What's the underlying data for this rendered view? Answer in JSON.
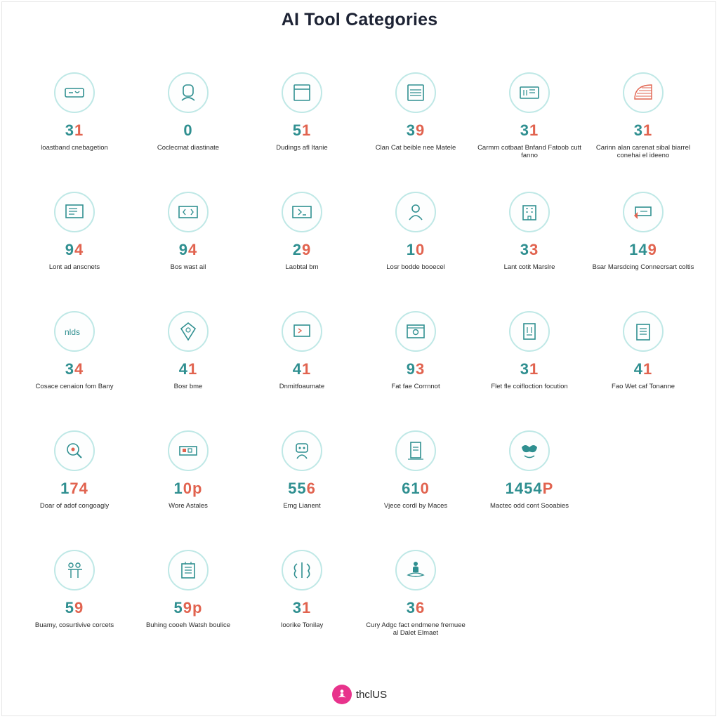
{
  "page": {
    "title": "AI Tool Categories"
  },
  "categories": [
    {
      "icon": "ticket-icon",
      "count_a": "3",
      "count_b": "1",
      "label": "loastband cnebagetion"
    },
    {
      "icon": "robot-head-icon",
      "count_a": "0",
      "count_b": "",
      "label": "Coclecmat diastinate"
    },
    {
      "icon": "document-window-icon",
      "count_a": "5",
      "count_b": "1",
      "label": "Dudings afl Itanie"
    },
    {
      "icon": "browser-window-icon",
      "count_a": "3",
      "count_b": "9",
      "label": "Clan Cat beible nee Matele"
    },
    {
      "icon": "server-icon",
      "count_a": "3",
      "count_b": "1",
      "label": "Carmm cotbaat Bnfand Fatoob cutt fanno"
    },
    {
      "icon": "dome-icon",
      "count_a": "3",
      "count_b": "1",
      "label": "Carinn alan carenat sibal biarrel conehai el ideeno"
    },
    {
      "icon": "monitor-list-icon",
      "count_a": "9",
      "count_b": "4",
      "label": "Lont ad anscnets"
    },
    {
      "icon": "code-window-icon",
      "count_a": "9",
      "count_b": "4",
      "label": "Bos wast ail"
    },
    {
      "icon": "code-arrow-icon",
      "count_a": "2",
      "count_b": "9",
      "label": "Laobtal bm"
    },
    {
      "icon": "person-icon",
      "count_a": "1",
      "count_b": "0",
      "label": "Losr bodde booecel"
    },
    {
      "icon": "building-icon",
      "count_a": "3",
      "count_b": "3",
      "label": "Lant cotit Marslre"
    },
    {
      "icon": "tag-card-icon",
      "count_a": "14",
      "count_b": "9",
      "label": "Bsar Marsdcing Connecrsart coltis"
    },
    {
      "icon": "nlds-text-icon",
      "count_a": "3",
      "count_b": "4",
      "label": "Cosace cenaion fom Bany"
    },
    {
      "icon": "shield-face-icon",
      "count_a": "4",
      "count_b": "1",
      "label": "Bosr bme"
    },
    {
      "icon": "chat-screen-icon",
      "count_a": "4",
      "count_b": "1",
      "label": "Dnmitfoaumate"
    },
    {
      "icon": "camera-window-icon",
      "count_a": "9",
      "count_b": "3",
      "label": "Fat fae Corrnnot"
    },
    {
      "icon": "trash-doc-icon",
      "count_a": "3",
      "count_b": "1",
      "label": "Flet fle coifloction focution"
    },
    {
      "icon": "clipboard-icon",
      "count_a": "4",
      "count_b": "1",
      "label": "Fao Wet caf Tonanne"
    },
    {
      "icon": "magnifier-face-icon",
      "count_a": "1",
      "count_b": "74",
      "label": "Doar of adof congoagly"
    },
    {
      "icon": "keyboard-icon",
      "count_a": "1",
      "count_b": "0p",
      "label": "Wore Astales"
    },
    {
      "icon": "robot-icon",
      "count_a": "55",
      "count_b": "6",
      "label": "Emg Lianent"
    },
    {
      "icon": "phone-doc-icon",
      "count_a": "61",
      "count_b": "0",
      "label": "Vjece cordl by Maces"
    },
    {
      "icon": "tooth-smile-icon",
      "count_a": "1454",
      "count_b": "P",
      "label": "Mactec odd cont Sooabies"
    },
    {
      "icon": "",
      "count_a": "",
      "count_b": "",
      "label": ""
    },
    {
      "icon": "people-icon",
      "count_a": "5",
      "count_b": "9",
      "label": "Buamy, cosurtivive corcets"
    },
    {
      "icon": "notepad-icon",
      "count_a": "5",
      "count_b": "9p",
      "label": "Buhing cooeh Watsh boulice"
    },
    {
      "icon": "brain-icon",
      "count_a": "3",
      "count_b": "1",
      "label": "Ioorike Tonilay"
    },
    {
      "icon": "meditation-icon",
      "count_a": "3",
      "count_b": "6",
      "label": "Cury Adgc fact endmene fremuee al Dalet Elmaet"
    }
  ],
  "footer": {
    "brand": "thclUS",
    "logo_icon": "meditation-logo-icon"
  },
  "colors": {
    "teal": "#2f8f90",
    "coral": "#e1634f",
    "ring": "#bfe8e6",
    "brand": "#e8338c"
  }
}
